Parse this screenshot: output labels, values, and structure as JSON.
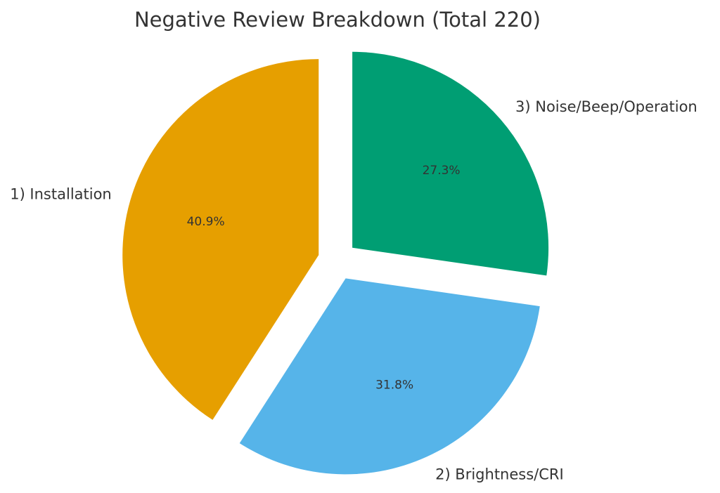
{
  "chart_data": {
    "type": "pie",
    "title": "Negative Review Breakdown (Total 220)",
    "total": 220,
    "start_angle_deg": 90,
    "direction": "counterclockwise",
    "exploded": true,
    "slices": [
      {
        "label": "1) Installation",
        "value": 90,
        "pct_label": "40.9%",
        "color": "#E69F00"
      },
      {
        "label": "2) Brightness/CRI",
        "value": 70,
        "pct_label": "31.8%",
        "color": "#56B4E9"
      },
      {
        "label": "3) Noise/Beep/Operation",
        "value": 60,
        "pct_label": "27.3%",
        "color": "#009E73"
      }
    ]
  }
}
